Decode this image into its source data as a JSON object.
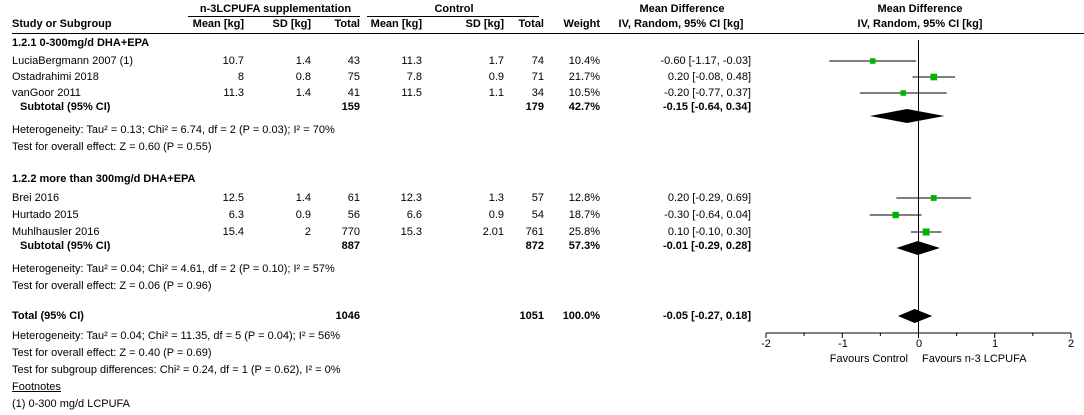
{
  "headers": {
    "study": "Study or Subgroup",
    "group1": "n-3LCPUFA supplementation",
    "group2": "Control",
    "md_table": "Mean Difference",
    "md_table_sub": "IV, Random, 95% CI [kg]",
    "md_plot": "Mean Difference",
    "md_plot_sub": "IV, Random, 95% CI [kg]",
    "mean": "Mean [kg]",
    "sd": "SD [kg]",
    "total": "Total",
    "weight": "Weight"
  },
  "subgroups": [
    {
      "title": "1.2.1 0-300mg/d DHA+EPA",
      "studies": [
        {
          "name": "LuciaBergmann 2007 (1)",
          "m1": "10.7",
          "sd1": "1.4",
          "n1": "43",
          "m2": "11.3",
          "sd2": "1.7",
          "n2": "74",
          "weight": "10.4%",
          "ci": "-0.60 [-1.17, -0.03]"
        },
        {
          "name": "Ostadrahimi 2018",
          "m1": "8",
          "sd1": "0.8",
          "n1": "75",
          "m2": "7.8",
          "sd2": "0.9",
          "n2": "71",
          "weight": "21.7%",
          "ci": "0.20 [-0.08, 0.48]"
        },
        {
          "name": "vanGoor 2011",
          "m1": "11.3",
          "sd1": "1.4",
          "n1": "41",
          "m2": "11.5",
          "sd2": "1.1",
          "n2": "34",
          "weight": "10.5%",
          "ci": "-0.20 [-0.77, 0.37]"
        }
      ],
      "subtotal": {
        "label": "Subtotal (95% CI)",
        "n1": "159",
        "n2": "179",
        "weight": "42.7%",
        "ci": "-0.15 [-0.64, 0.34]"
      },
      "heterogeneity": "Heterogeneity: Tau² = 0.13; Chi² = 6.74, df = 2 (P = 0.03); I² = 70%",
      "overall": "Test for overall effect: Z = 0.60 (P = 0.55)"
    },
    {
      "title": "1.2.2 more than 300mg/d DHA+EPA",
      "studies": [
        {
          "name": "Brei 2016",
          "m1": "12.5",
          "sd1": "1.4",
          "n1": "61",
          "m2": "12.3",
          "sd2": "1.3",
          "n2": "57",
          "weight": "12.8%",
          "ci": "0.20 [-0.29, 0.69]"
        },
        {
          "name": "Hurtado 2015",
          "m1": "6.3",
          "sd1": "0.9",
          "n1": "56",
          "m2": "6.6",
          "sd2": "0.9",
          "n2": "54",
          "weight": "18.7%",
          "ci": "-0.30 [-0.64, 0.04]"
        },
        {
          "name": "Muhlhausler 2016",
          "m1": "15.4",
          "sd1": "2",
          "n1": "770",
          "m2": "15.3",
          "sd2": "2.01",
          "n2": "761",
          "weight": "25.8%",
          "ci": "0.10 [-0.10, 0.30]"
        }
      ],
      "subtotal": {
        "label": "Subtotal (95% CI)",
        "n1": "887",
        "n2": "872",
        "weight": "57.3%",
        "ci": "-0.01 [-0.29, 0.28]"
      },
      "heterogeneity": "Heterogeneity: Tau² = 0.04; Chi² = 4.61, df = 2 (P = 0.10); I² = 57%",
      "overall": "Test for overall effect: Z = 0.06 (P = 0.96)"
    }
  ],
  "total": {
    "label": "Total (95% CI)",
    "n1": "1046",
    "n2": "1051",
    "weight": "100.0%",
    "ci": "-0.05 [-0.27, 0.18]"
  },
  "footer": {
    "heterogeneity": "Heterogeneity: Tau² = 0.04; Chi² = 11.35, df = 5 (P = 0.04); I² = 56%",
    "overall": "Test for overall effect: Z = 0.40 (P = 0.69)",
    "subgroup_diff": "Test for subgroup differences: Chi² = 0.24, df = 1 (P = 0.62), I² = 0%",
    "footnotes_title": "Footnotes",
    "footnote_1": "(1) 0-300 mg/d LCPUFA"
  },
  "axis": {
    "ticks": [
      "-2",
      "-1",
      "0",
      "1",
      "2"
    ],
    "favours_left": "Favours Control",
    "favours_right": "Favours n-3 LCPUFA"
  },
  "colors": {
    "marker": "#00b400",
    "diamond": "#000000"
  },
  "chart_data": {
    "type": "forest",
    "xlim": [
      -2,
      2
    ],
    "studies": [
      {
        "name": "LuciaBergmann 2007 (1)",
        "md": -0.6,
        "lo": -1.17,
        "hi": -0.03,
        "weight": 10.4
      },
      {
        "name": "Ostadrahimi 2018",
        "md": 0.2,
        "lo": -0.08,
        "hi": 0.48,
        "weight": 21.7
      },
      {
        "name": "vanGoor 2011",
        "md": -0.2,
        "lo": -0.77,
        "hi": 0.37,
        "weight": 10.5
      },
      {
        "name": "Brei 2016",
        "md": 0.2,
        "lo": -0.29,
        "hi": 0.69,
        "weight": 12.8
      },
      {
        "name": "Hurtado 2015",
        "md": -0.3,
        "lo": -0.64,
        "hi": 0.04,
        "weight": 18.7
      },
      {
        "name": "Muhlhausler 2016",
        "md": 0.1,
        "lo": -0.1,
        "hi": 0.3,
        "weight": 25.8
      }
    ],
    "pooled": [
      {
        "name": "Subtotal (95% CI)",
        "md": -0.15,
        "lo": -0.64,
        "hi": 0.34
      },
      {
        "name": "Subtotal (95% CI)",
        "md": -0.01,
        "lo": -0.29,
        "hi": 0.28
      },
      {
        "name": "Total (95% CI)",
        "md": -0.05,
        "lo": -0.27,
        "hi": 0.18
      }
    ]
  }
}
